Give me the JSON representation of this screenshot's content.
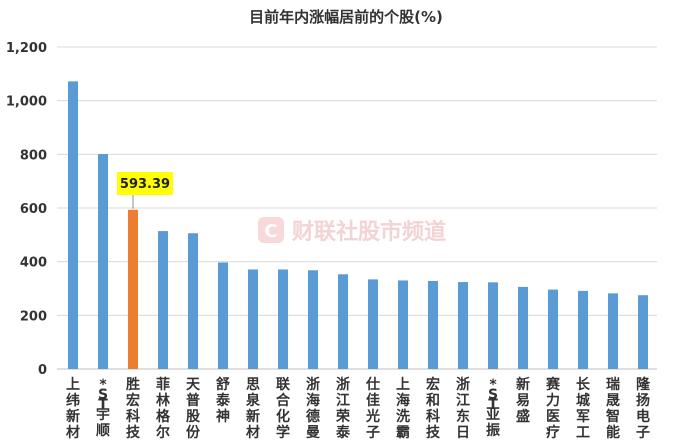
{
  "chart_data": {
    "type": "bar",
    "title": "目前年内涨幅居前的个股(%)",
    "xlabel": "",
    "ylabel": "",
    "ylim": [
      0,
      1200
    ],
    "yticks": [
      0,
      200,
      400,
      600,
      800,
      1000,
      1200
    ],
    "ytick_labels": [
      "0",
      "200",
      "400",
      "600",
      "800",
      "1,000",
      "1,200"
    ],
    "grid": true,
    "legend": "none",
    "categories": [
      "上纬新材",
      "*ST宇顺",
      "胜宏科技",
      "菲林格尔",
      "天普股份",
      "舒泰神",
      "思泉新材",
      "联合化学",
      "浙海德曼",
      "浙江荣泰",
      "仕佳光子",
      "上海洗霸",
      "宏和科技",
      "浙江东日",
      "*ST亚振",
      "新易盛",
      "赛力医疗",
      "长城军工",
      "瑞晟智能",
      "隆扬电子"
    ],
    "values": [
      1072,
      801,
      593.39,
      514,
      506,
      397,
      371,
      371,
      368,
      353,
      334,
      330,
      328,
      324,
      323,
      306,
      296,
      291,
      282,
      275
    ],
    "highlight_index": 2,
    "annotation": {
      "text": "593.39",
      "index": 2
    },
    "colors": {
      "bar": "#5b9bd5",
      "highlight": "#ed7d31",
      "annotation_bg": "#ffff00",
      "grid": "#d9d9d9"
    }
  },
  "watermark": {
    "icon": "caixin-logo-icon",
    "text": "财联社股市频道"
  }
}
